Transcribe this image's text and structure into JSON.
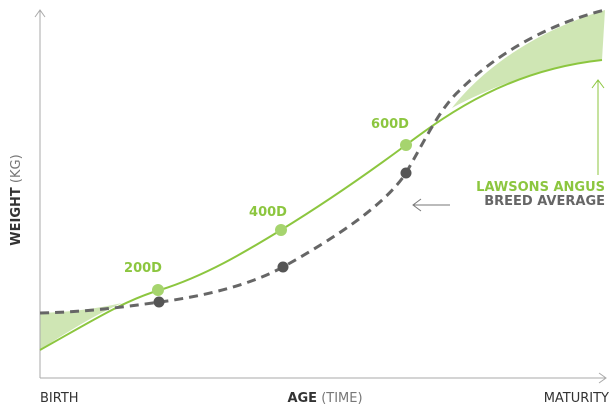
{
  "axes": {
    "y_label": {
      "bold": "WEIGHT",
      "light": "(KG)"
    },
    "x_label": {
      "bold": "AGE",
      "light": "(TIME)"
    },
    "x_start": "BIRTH",
    "x_end": "MATURITY"
  },
  "points": [
    "200D",
    "400D",
    "600D"
  ],
  "legend": {
    "lawsons": "LAWSONS ANGUS",
    "breed": "BREED AVERAGE"
  }
}
